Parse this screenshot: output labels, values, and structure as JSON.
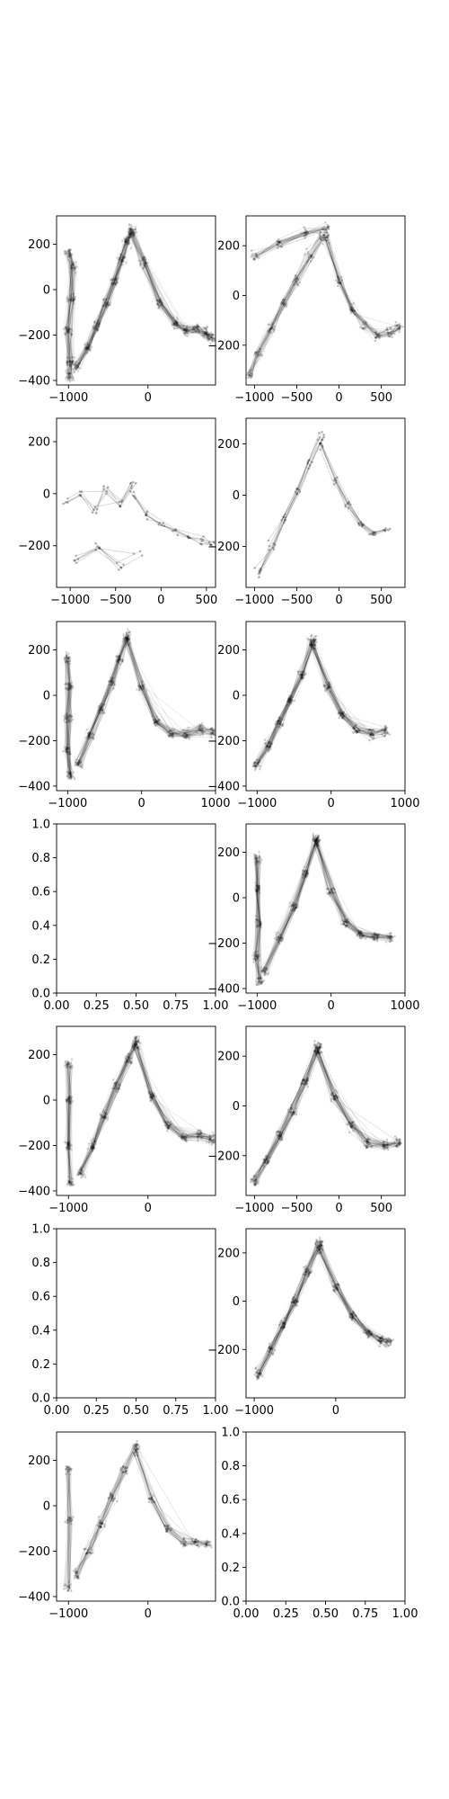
{
  "figure": {
    "background": "#ffffff",
    "ink_color": "#000000",
    "grid": false
  },
  "chart_data": [
    {
      "panel": "row1-left",
      "type": "scatter",
      "style": "faint connected trajectories",
      "density": "heavy",
      "series_color": "#000000",
      "xlim": [
        -1150,
        850
      ],
      "ylim": [
        -420,
        325
      ],
      "xticks": [
        -1000,
        0
      ],
      "xtick_labels": [
        "−1000",
        "0"
      ],
      "yticks": [
        -400,
        -200,
        0,
        200
      ],
      "ytick_labels": [
        "−400",
        "−200",
        "0",
        "200"
      ],
      "clusters": [
        {
          "x": [
            -1000,
            -950,
            -960,
            -1000,
            -980,
            -990
          ],
          "y": [
            160,
            100,
            -40,
            -180,
            -320,
            -380
          ]
        },
        {
          "x": [
            -900,
            -760,
            -640,
            -520,
            -420,
            -330,
            -260,
            -200
          ],
          "y": [
            -340,
            -260,
            -160,
            -60,
            40,
            130,
            210,
            260
          ]
        },
        {
          "x": [
            -200,
            -50,
            150,
            350,
            480,
            600,
            720,
            800
          ],
          "y": [
            250,
            120,
            -60,
            -150,
            -180,
            -170,
            -190,
            -210
          ]
        }
      ]
    },
    {
      "panel": "row1-right",
      "type": "scatter",
      "style": "faint connected trajectories",
      "density": "medium",
      "series_color": "#000000",
      "xlim": [
        -1100,
        780
      ],
      "ylim": [
        -360,
        320
      ],
      "xticks": [
        -1000,
        -500,
        0,
        500
      ],
      "xtick_labels": [
        "−1000",
        "−500",
        "0",
        "500"
      ],
      "yticks": [
        -200,
        0,
        200
      ],
      "ytick_labels": [
        "−200",
        "0",
        "200"
      ],
      "clusters": [
        {
          "x": [
            -1050,
            -950,
            -800,
            -650,
            -500,
            -350,
            -200
          ],
          "y": [
            -320,
            -230,
            -130,
            -30,
            60,
            160,
            240
          ]
        },
        {
          "x": [
            -150,
            0,
            150,
            300,
            450,
            600,
            700
          ],
          "y": [
            230,
            60,
            -60,
            -120,
            -160,
            -150,
            -130
          ]
        },
        {
          "x": [
            -1000,
            -700,
            -400,
            -150
          ],
          "y": [
            160,
            210,
            250,
            270
          ]
        }
      ]
    },
    {
      "panel": "row2-left",
      "type": "scatter",
      "style": "faint connected trajectories",
      "density": "sparse",
      "series_color": "#000000",
      "xlim": [
        -1150,
        600
      ],
      "ylim": [
        -360,
        290
      ],
      "xticks": [
        -1000,
        -500,
        0,
        500
      ],
      "xtick_labels": [
        "−1000",
        "−500",
        "0",
        "500"
      ],
      "yticks": [
        -200,
        0,
        200
      ],
      "ytick_labels": [
        "−200",
        "0",
        "200"
      ],
      "clusters": [
        {
          "x": [
            -1050,
            -900,
            -750,
            -600,
            -450,
            -300
          ],
          "y": [
            -30,
            0,
            -60,
            20,
            -40,
            40
          ]
        },
        {
          "x": [
            -300,
            -150,
            0,
            150,
            300,
            450,
            550
          ],
          "y": [
            0,
            -80,
            -120,
            -150,
            -170,
            -180,
            -190
          ]
        },
        {
          "x": [
            -950,
            -700,
            -450,
            -250
          ],
          "y": [
            -250,
            -200,
            -280,
            -230
          ]
        }
      ]
    },
    {
      "panel": "row2-right",
      "type": "scatter",
      "style": "faint connected trajectories",
      "density": "sparse",
      "series_color": "#000000",
      "xlim": [
        -1100,
        780
      ],
      "ylim": [
        -360,
        300
      ],
      "xticks": [
        -1000,
        -500,
        0,
        500
      ],
      "xtick_labels": [
        "−1000",
        "−500",
        "0",
        "500"
      ],
      "yticks": [
        -200,
        0,
        200
      ],
      "ytick_labels": [
        "−200",
        "0",
        "200"
      ],
      "clusters": [
        {
          "x": [
            -950,
            -800,
            -650,
            -500,
            -350,
            -200
          ],
          "y": [
            -300,
            -200,
            -90,
            20,
            130,
            230
          ]
        },
        {
          "x": [
            -200,
            -50,
            100,
            250,
            400,
            550
          ],
          "y": [
            200,
            60,
            -40,
            -110,
            -150,
            -140
          ]
        }
      ]
    },
    {
      "panel": "row3-left",
      "type": "scatter",
      "style": "faint connected trajectories",
      "density": "heavy",
      "series_color": "#000000",
      "xlim": [
        -1150,
        1000
      ],
      "ylim": [
        -420,
        325
      ],
      "xticks": [
        -1000,
        0,
        1000
      ],
      "xtick_labels": [
        "−1000",
        "0",
        "1000"
      ],
      "yticks": [
        -400,
        -200,
        0,
        200
      ],
      "ytick_labels": [
        "−400",
        "−200",
        "0",
        "200"
      ],
      "clusters": [
        {
          "x": [
            -1000,
            -980,
            -990,
            -1000,
            -970
          ],
          "y": [
            160,
            40,
            -100,
            -240,
            -350
          ]
        },
        {
          "x": [
            -850,
            -700,
            -550,
            -400,
            -300,
            -200
          ],
          "y": [
            -300,
            -180,
            -60,
            60,
            160,
            260
          ]
        },
        {
          "x": [
            -200,
            0,
            200,
            400,
            600,
            800,
            950
          ],
          "y": [
            240,
            40,
            -110,
            -170,
            -170,
            -150,
            -160
          ]
        }
      ]
    },
    {
      "panel": "row3-right",
      "type": "scatter",
      "style": "faint connected trajectories",
      "density": "medium",
      "series_color": "#000000",
      "xlim": [
        -1150,
        1000
      ],
      "ylim": [
        -420,
        325
      ],
      "xticks": [
        -1000,
        0,
        1000
      ],
      "xtick_labels": [
        "−1000",
        "0",
        "1000"
      ],
      "yticks": [
        -400,
        -200,
        0,
        200
      ],
      "ytick_labels": [
        "−400",
        "−200",
        "0",
        "200"
      ],
      "clusters": [
        {
          "x": [
            -1000,
            -850,
            -700,
            -550,
            -400,
            -250
          ],
          "y": [
            -300,
            -220,
            -120,
            -20,
            90,
            250
          ]
        },
        {
          "x": [
            -250,
            -50,
            150,
            350,
            550,
            750
          ],
          "y": [
            220,
            40,
            -80,
            -150,
            -170,
            -160
          ]
        }
      ]
    },
    {
      "panel": "row4-left",
      "type": "scatter",
      "style": "empty axes",
      "density": "empty",
      "series_color": "#000000",
      "xlim": [
        0,
        1
      ],
      "ylim": [
        0,
        1
      ],
      "xticks": [
        0,
        0.25,
        0.5,
        0.75,
        1
      ],
      "xtick_labels": [
        "0.00",
        "0.25",
        "0.50",
        "0.75",
        "1.00"
      ],
      "yticks": [
        0,
        0.2,
        0.4,
        0.6,
        0.8,
        1
      ],
      "ytick_labels": [
        "0.0",
        "0.2",
        "0.4",
        "0.6",
        "0.8",
        "1.0"
      ],
      "clusters": []
    },
    {
      "panel": "row4-right",
      "type": "scatter",
      "style": "faint connected trajectories",
      "density": "heavy",
      "series_color": "#000000",
      "xlim": [
        -1150,
        1000
      ],
      "ylim": [
        -420,
        325
      ],
      "xticks": [
        -1000,
        0,
        1000
      ],
      "xtick_labels": [
        "−1000",
        "0",
        "1000"
      ],
      "yticks": [
        -400,
        -200,
        0,
        200
      ],
      "ytick_labels": [
        "−400",
        "−200",
        "0",
        "200"
      ],
      "clusters": [
        {
          "x": [
            -1000,
            -990,
            -980,
            -1000,
            -970
          ],
          "y": [
            170,
            40,
            -110,
            -260,
            -370
          ]
        },
        {
          "x": [
            -900,
            -700,
            -500,
            -350,
            -200
          ],
          "y": [
            -320,
            -180,
            -40,
            110,
            260
          ]
        },
        {
          "x": [
            -200,
            0,
            200,
            400,
            600,
            800
          ],
          "y": [
            250,
            30,
            -110,
            -160,
            -170,
            -180
          ]
        }
      ]
    },
    {
      "panel": "row5-left",
      "type": "scatter",
      "style": "faint connected trajectories",
      "density": "heavy",
      "series_color": "#000000",
      "xlim": [
        -1150,
        850
      ],
      "ylim": [
        -420,
        325
      ],
      "xticks": [
        -1000,
        0
      ],
      "xtick_labels": [
        "−1000",
        "0"
      ],
      "yticks": [
        -400,
        -200,
        0,
        200
      ],
      "ytick_labels": [
        "−400",
        "−200",
        "0",
        "200"
      ],
      "clusters": [
        {
          "x": [
            -1000,
            -990,
            -1000,
            -980
          ],
          "y": [
            160,
            0,
            -200,
            -360
          ]
        },
        {
          "x": [
            -850,
            -700,
            -550,
            -400,
            -250,
            -150
          ],
          "y": [
            -320,
            -200,
            -70,
            60,
            180,
            260
          ]
        },
        {
          "x": [
            -150,
            50,
            250,
            450,
            650,
            800
          ],
          "y": [
            240,
            20,
            -110,
            -160,
            -150,
            -170
          ]
        }
      ]
    },
    {
      "panel": "row5-right",
      "type": "scatter",
      "style": "faint connected trajectories",
      "density": "medium",
      "series_color": "#000000",
      "xlim": [
        -1100,
        780
      ],
      "ylim": [
        -360,
        320
      ],
      "xticks": [
        -1000,
        -500,
        0,
        500
      ],
      "xtick_labels": [
        "−1000",
        "−500",
        "0",
        "500"
      ],
      "yticks": [
        -200,
        0,
        200
      ],
      "ytick_labels": [
        "−200",
        "0",
        "200"
      ],
      "clusters": [
        {
          "x": [
            -1000,
            -850,
            -700,
            -550,
            -400,
            -250
          ],
          "y": [
            -300,
            -220,
            -120,
            -20,
            100,
            240
          ]
        },
        {
          "x": [
            -250,
            -50,
            150,
            350,
            550,
            700
          ],
          "y": [
            220,
            40,
            -80,
            -150,
            -160,
            -150
          ]
        }
      ]
    },
    {
      "panel": "row6-left",
      "type": "scatter",
      "style": "empty axes",
      "density": "empty",
      "series_color": "#000000",
      "xlim": [
        0,
        1
      ],
      "ylim": [
        0,
        1
      ],
      "xticks": [
        0,
        0.25,
        0.5,
        0.75,
        1
      ],
      "xtick_labels": [
        "0.00",
        "0.25",
        "0.50",
        "0.75",
        "1.00"
      ],
      "yticks": [
        0,
        0.2,
        0.4,
        0.6,
        0.8,
        1
      ],
      "ytick_labels": [
        "0.0",
        "0.2",
        "0.4",
        "0.6",
        "0.8",
        "1.0"
      ],
      "clusters": []
    },
    {
      "panel": "row6-right",
      "type": "scatter",
      "style": "faint connected trajectories",
      "density": "medium",
      "series_color": "#000000",
      "xlim": [
        -1100,
        850
      ],
      "ylim": [
        -400,
        300
      ],
      "xticks": [
        -1000,
        0
      ],
      "xtick_labels": [
        "−1000",
        "0"
      ],
      "yticks": [
        -200,
        0,
        200
      ],
      "ytick_labels": [
        "−200",
        "0",
        "200"
      ],
      "clusters": [
        {
          "x": [
            -950,
            -800,
            -650,
            -500,
            -350,
            -200
          ],
          "y": [
            -300,
            -200,
            -100,
            0,
            120,
            240
          ]
        },
        {
          "x": [
            -200,
            0,
            200,
            400,
            550,
            650
          ],
          "y": [
            220,
            60,
            -60,
            -130,
            -160,
            -170
          ]
        }
      ]
    },
    {
      "panel": "row7-left",
      "type": "scatter",
      "style": "faint connected trajectories",
      "density": "medium",
      "series_color": "#000000",
      "xlim": [
        -1150,
        850
      ],
      "ylim": [
        -420,
        325
      ],
      "xticks": [
        -1000,
        0
      ],
      "xtick_labels": [
        "−1000",
        "0"
      ],
      "yticks": [
        -400,
        -200,
        0,
        200
      ],
      "ytick_labels": [
        "−400",
        "−200",
        "0",
        "200"
      ],
      "clusters": [
        {
          "x": [
            -1000,
            -990,
            -1000
          ],
          "y": [
            160,
            -60,
            -360
          ]
        },
        {
          "x": [
            -900,
            -750,
            -600,
            -450,
            -300,
            -150
          ],
          "y": [
            -300,
            -200,
            -80,
            40,
            160,
            260
          ]
        },
        {
          "x": [
            -150,
            50,
            250,
            450,
            600,
            750
          ],
          "y": [
            240,
            30,
            -100,
            -160,
            -160,
            -170
          ]
        }
      ]
    },
    {
      "panel": "row7-right",
      "type": "scatter",
      "style": "empty axes",
      "density": "empty",
      "series_color": "#000000",
      "xlim": [
        0,
        1
      ],
      "ylim": [
        0,
        1
      ],
      "xticks": [
        0,
        0.25,
        0.5,
        0.75,
        1
      ],
      "xtick_labels": [
        "0.00",
        "0.25",
        "0.50",
        "0.75",
        "1.00"
      ],
      "yticks": [
        0,
        0.2,
        0.4,
        0.6,
        0.8,
        1
      ],
      "ytick_labels": [
        "0.0",
        "0.2",
        "0.4",
        "0.6",
        "0.8",
        "1.0"
      ],
      "clusters": []
    }
  ]
}
